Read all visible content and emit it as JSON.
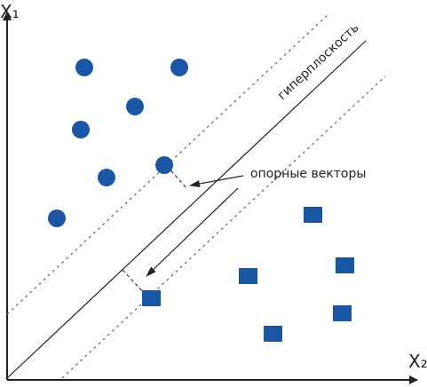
{
  "diagram": {
    "labels": {
      "y_axis": "X₁",
      "x_axis": "X₂",
      "hyperplane": "гиперплоскость",
      "support_vectors": "опорные векторы"
    },
    "colors": {
      "points": "#1a56a6",
      "lines": "#222222",
      "margins": "#555555"
    },
    "class_a_marker": "circle",
    "class_b_marker": "square"
  }
}
